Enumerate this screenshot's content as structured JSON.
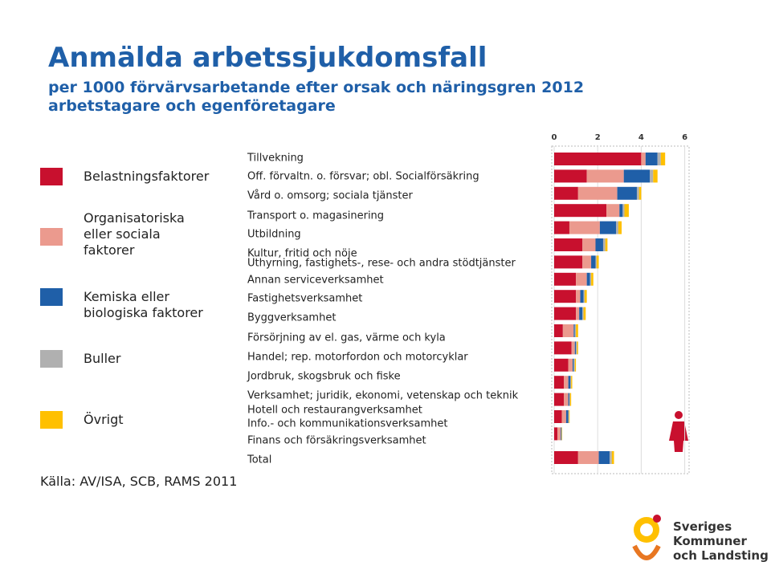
{
  "title": "Anmälda arbetssjukdomsfall",
  "subtitle_1": "per 1000 förvärvsarbetande efter orsak och näringsgren 2012",
  "subtitle_2": "arbetstagare och egenföretagare",
  "source": "Källa: AV/ISA, SCB, RAMS 2011",
  "logo": {
    "line_1": "Sveriges",
    "line_2": "Kommuner",
    "line_3": "och Landsting"
  },
  "chart_data": {
    "type": "stacked-barh",
    "categories": [
      "Tillvekning",
      "Off. förvaltn. o. försvar; obl. Socialförsäkring",
      "Vård o. omsorg; sociala tjänster",
      "Transport o. magasinering",
      "Utbildning",
      "Kultur, fritid och nöje",
      "Uthyrning, fastighets-, rese- och andra stödtjänster",
      "Annan serviceverksamhet",
      "Fastighetsverksamhet",
      "Byggverksamhet",
      "Försörjning av el. gas, värme och kyla",
      "Handel; rep. motorfordon och motorcyklar",
      "Jordbruk, skogsbruk och fiske",
      "Verksamhet; juridik, ekonomi, vetenskap och teknik",
      "Hotell och restaurangverksamhet",
      "Info.- och kommunikationsverksamhet",
      "Finans och försäkringsverksamhet",
      "Total"
    ],
    "series": [
      {
        "name": "Belastningsfaktorer",
        "color": "#c8102e",
        "values": [
          4.0,
          1.5,
          1.1,
          2.4,
          0.7,
          1.3,
          1.3,
          1.0,
          1.0,
          1.0,
          0.4,
          0.8,
          0.65,
          0.45,
          0.45,
          0.35,
          0.15,
          1.1
        ]
      },
      {
        "name": "Organisatoriska eller sociala faktorer",
        "color": "#eb9a8e",
        "values": [
          0.2,
          1.7,
          1.8,
          0.6,
          1.4,
          0.6,
          0.4,
          0.5,
          0.2,
          0.15,
          0.5,
          0.15,
          0.2,
          0.2,
          0.2,
          0.2,
          0.15,
          0.95
        ]
      },
      {
        "name": "Kemiska eller biologiska faktorer",
        "color": "#1f5fa8",
        "values": [
          0.55,
          1.2,
          0.9,
          0.15,
          0.75,
          0.35,
          0.2,
          0.15,
          0.15,
          0.15,
          0.05,
          0.05,
          0.05,
          0.1,
          0.05,
          0.1,
          0.03,
          0.5
        ]
      },
      {
        "name": "Buller",
        "color": "#b0b0b0",
        "values": [
          0.15,
          0.15,
          0.1,
          0.08,
          0.1,
          0.1,
          0.05,
          0.05,
          0.05,
          0.05,
          0.05,
          0.05,
          0.05,
          0.03,
          0.03,
          0.03,
          0.02,
          0.1
        ]
      },
      {
        "name": "Övrigt",
        "color": "#ffc000",
        "values": [
          0.2,
          0.2,
          0.1,
          0.2,
          0.15,
          0.1,
          0.1,
          0.1,
          0.1,
          0.1,
          0.1,
          0.05,
          0.05,
          0.05,
          0.05,
          0.03,
          0.02,
          0.1
        ]
      }
    ],
    "xlim": [
      0,
      6.2
    ],
    "xticks": [
      0,
      2,
      4,
      6
    ],
    "grid": true
  }
}
